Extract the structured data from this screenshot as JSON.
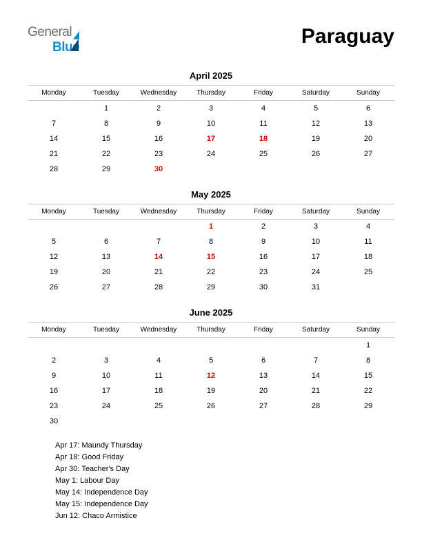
{
  "logo": {
    "general": "General",
    "blue": "Blue"
  },
  "country": "Paraguay",
  "weekdays": [
    "Monday",
    "Tuesday",
    "Wednesday",
    "Thursday",
    "Friday",
    "Saturday",
    "Sunday"
  ],
  "colors": {
    "text": "#000000",
    "holiday": "#cc0000",
    "grid_border": "#c8c8c8",
    "background": "#ffffff",
    "logo_general": "#6b6b6b",
    "logo_blue": "#1a8bc4",
    "logo_triangle_dark": "#0a4a7a"
  },
  "typography": {
    "country_fontsize": 30,
    "month_title_fontsize": 13,
    "weekday_fontsize": 10,
    "day_fontsize": 11,
    "holiday_list_fontsize": 11
  },
  "months": [
    {
      "title": "April 2025",
      "weeks": [
        [
          null,
          {
            "d": 1
          },
          {
            "d": 2
          },
          {
            "d": 3
          },
          {
            "d": 4
          },
          {
            "d": 5
          },
          {
            "d": 6
          }
        ],
        [
          {
            "d": 7
          },
          {
            "d": 8
          },
          {
            "d": 9
          },
          {
            "d": 10
          },
          {
            "d": 11
          },
          {
            "d": 12
          },
          {
            "d": 13
          }
        ],
        [
          {
            "d": 14
          },
          {
            "d": 15
          },
          {
            "d": 16
          },
          {
            "d": 17,
            "h": true
          },
          {
            "d": 18,
            "h": true
          },
          {
            "d": 19
          },
          {
            "d": 20
          }
        ],
        [
          {
            "d": 21
          },
          {
            "d": 22
          },
          {
            "d": 23
          },
          {
            "d": 24
          },
          {
            "d": 25
          },
          {
            "d": 26
          },
          {
            "d": 27
          }
        ],
        [
          {
            "d": 28
          },
          {
            "d": 29
          },
          {
            "d": 30,
            "h": true
          },
          null,
          null,
          null,
          null
        ]
      ]
    },
    {
      "title": "May 2025",
      "weeks": [
        [
          null,
          null,
          null,
          {
            "d": 1,
            "h": true
          },
          {
            "d": 2
          },
          {
            "d": 3
          },
          {
            "d": 4
          }
        ],
        [
          {
            "d": 5
          },
          {
            "d": 6
          },
          {
            "d": 7
          },
          {
            "d": 8
          },
          {
            "d": 9
          },
          {
            "d": 10
          },
          {
            "d": 11
          }
        ],
        [
          {
            "d": 12
          },
          {
            "d": 13
          },
          {
            "d": 14,
            "h": true
          },
          {
            "d": 15,
            "h": true
          },
          {
            "d": 16
          },
          {
            "d": 17
          },
          {
            "d": 18
          }
        ],
        [
          {
            "d": 19
          },
          {
            "d": 20
          },
          {
            "d": 21
          },
          {
            "d": 22
          },
          {
            "d": 23
          },
          {
            "d": 24
          },
          {
            "d": 25
          }
        ],
        [
          {
            "d": 26
          },
          {
            "d": 27
          },
          {
            "d": 28
          },
          {
            "d": 29
          },
          {
            "d": 30
          },
          {
            "d": 31
          },
          null
        ]
      ]
    },
    {
      "title": "June 2025",
      "weeks": [
        [
          null,
          null,
          null,
          null,
          null,
          null,
          {
            "d": 1
          }
        ],
        [
          {
            "d": 2
          },
          {
            "d": 3
          },
          {
            "d": 4
          },
          {
            "d": 5
          },
          {
            "d": 6
          },
          {
            "d": 7
          },
          {
            "d": 8
          }
        ],
        [
          {
            "d": 9
          },
          {
            "d": 10
          },
          {
            "d": 11
          },
          {
            "d": 12,
            "h": true
          },
          {
            "d": 13
          },
          {
            "d": 14
          },
          {
            "d": 15
          }
        ],
        [
          {
            "d": 16
          },
          {
            "d": 17
          },
          {
            "d": 18
          },
          {
            "d": 19
          },
          {
            "d": 20
          },
          {
            "d": 21
          },
          {
            "d": 22
          }
        ],
        [
          {
            "d": 23
          },
          {
            "d": 24
          },
          {
            "d": 25
          },
          {
            "d": 26
          },
          {
            "d": 27
          },
          {
            "d": 28
          },
          {
            "d": 29
          }
        ],
        [
          {
            "d": 30
          },
          null,
          null,
          null,
          null,
          null,
          null
        ]
      ]
    }
  ],
  "holidays_list": [
    "Apr 17: Maundy Thursday",
    "Apr 18: Good Friday",
    "Apr 30: Teacher's Day",
    "May 1: Labour Day",
    "May 14: Independence Day",
    "May 15: Independence Day",
    "Jun 12: Chaco Armistice"
  ]
}
